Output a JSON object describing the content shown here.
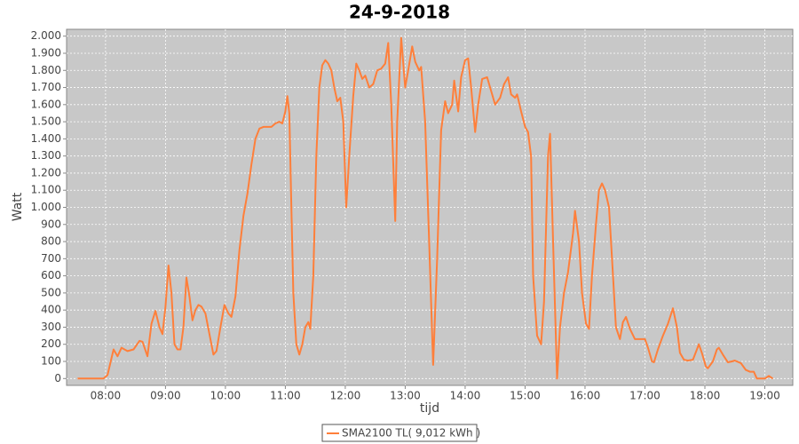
{
  "chart_data": {
    "type": "line",
    "title": "24-9-2018",
    "y_label": "Watt",
    "x_label": "tijd",
    "grid": true,
    "legend": "bottom",
    "xlim": [
      "07:21",
      "19:28"
    ],
    "xticks": [
      "08:00",
      "09:00",
      "10:00",
      "11:00",
      "12:00",
      "13:00",
      "14:00",
      "15:00",
      "16:00",
      "17:00",
      "18:00",
      "19:00"
    ],
    "ylim": [
      -40,
      2040
    ],
    "yticks": [
      0,
      100,
      200,
      300,
      400,
      500,
      600,
      700,
      800,
      900,
      {
        "value": 1000,
        "label": "1.000"
      },
      {
        "value": 1100,
        "label": "1.100"
      },
      {
        "value": 1200,
        "label": "1.200"
      },
      {
        "value": 1300,
        "label": "1.300"
      },
      {
        "value": 1400,
        "label": "1.400"
      },
      {
        "value": 1500,
        "label": "1.500"
      },
      {
        "value": 1600,
        "label": "1.600"
      },
      {
        "value": 1700,
        "label": "1.700"
      },
      {
        "value": 1800,
        "label": "1.800"
      },
      {
        "value": 1900,
        "label": "1.900"
      },
      {
        "value": 2000,
        "label": "2.000"
      }
    ],
    "x": [
      "07:32",
      "07:50",
      "07:58",
      "08:02",
      "08:08",
      "08:12",
      "08:16",
      "08:22",
      "08:28",
      "08:34",
      "08:37",
      "08:42",
      "08:46",
      "08:50",
      "08:54",
      "08:57",
      "09:00",
      "09:03",
      "09:06",
      "09:09",
      "09:12",
      "09:15",
      "09:18",
      "09:21",
      "09:24",
      "09:27",
      "09:30",
      "09:33",
      "09:36",
      "09:40",
      "09:44",
      "09:48",
      "09:51",
      "09:55",
      "09:59",
      "10:03",
      "10:06",
      "10:10",
      "10:14",
      "10:18",
      "10:22",
      "10:26",
      "10:30",
      "10:34",
      "10:38",
      "10:42",
      "10:46",
      "10:50",
      "10:54",
      "10:57",
      "11:00",
      "11:02",
      "11:04",
      "11:06",
      "11:08",
      "11:11",
      "11:14",
      "11:17",
      "11:20",
      "11:23",
      "11:25",
      "11:28",
      "11:31",
      "11:34",
      "11:37",
      "11:40",
      "11:43",
      "11:46",
      "11:49",
      "11:52",
      "11:55",
      "11:58",
      "12:01",
      "12:04",
      "12:08",
      "12:11",
      "12:14",
      "12:17",
      "12:20",
      "12:24",
      "12:28",
      "12:32",
      "12:36",
      "12:40",
      "12:43",
      "12:46",
      "12:50",
      "12:52",
      "12:56",
      "13:00",
      "13:03",
      "13:07",
      "13:10",
      "13:14",
      "13:16",
      "13:20",
      "13:24",
      "13:28",
      "13:32",
      "13:36",
      "13:40",
      "13:43",
      "13:47",
      "13:49",
      "13:53",
      "13:56",
      "14:00",
      "14:03",
      "14:06",
      "14:10",
      "14:13",
      "14:17",
      "14:22",
      "14:26",
      "14:30",
      "14:35",
      "14:39",
      "14:43",
      "14:46",
      "14:50",
      "14:52",
      "14:56",
      "15:00",
      "15:03",
      "15:06",
      "15:08",
      "15:12",
      "15:16",
      "15:19",
      "15:23",
      "15:25",
      "15:28",
      "15:32",
      "15:35",
      "15:39",
      "15:43",
      "15:48",
      "15:50",
      "15:54",
      "15:57",
      "16:01",
      "16:04",
      "16:07",
      "16:11",
      "16:14",
      "16:17",
      "16:20",
      "16:24",
      "16:28",
      "16:31",
      "16:35",
      "16:38",
      "16:41",
      "16:45",
      "16:50",
      "16:54",
      "17:00",
      "17:03",
      "17:07",
      "17:09",
      "17:13",
      "17:18",
      "17:23",
      "17:28",
      "17:32",
      "17:35",
      "17:39",
      "17:43",
      "17:48",
      "17:52",
      "17:54",
      "17:57",
      "18:01",
      "18:03",
      "18:08",
      "18:12",
      "18:14",
      "18:18",
      "18:23",
      "18:27",
      "18:30",
      "18:36",
      "18:41",
      "18:45",
      "18:49",
      "18:52",
      "19:00",
      "19:04",
      "19:08"
    ],
    "series": [
      {
        "name": "SMA2100 TL( 9,012 kWh )",
        "color": "#ff7f3a",
        "values": [
          0,
          0,
          0,
          20,
          170,
          130,
          180,
          160,
          170,
          220,
          215,
          130,
          320,
          395,
          300,
          260,
          420,
          660,
          500,
          200,
          170,
          170,
          300,
          590,
          480,
          340,
          400,
          430,
          420,
          380,
          260,
          140,
          160,
          300,
          430,
          380,
          360,
          480,
          750,
          950,
          1080,
          1250,
          1400,
          1460,
          1470,
          1470,
          1470,
          1490,
          1500,
          1490,
          1560,
          1650,
          1550,
          1000,
          500,
          200,
          140,
          200,
          300,
          330,
          290,
          600,
          1300,
          1700,
          1830,
          1860,
          1840,
          1800,
          1700,
          1620,
          1640,
          1500,
          1000,
          1300,
          1650,
          1840,
          1800,
          1750,
          1770,
          1700,
          1720,
          1800,
          1810,
          1840,
          1960,
          1600,
          920,
          1500,
          1990,
          1700,
          1800,
          1940,
          1850,
          1800,
          1820,
          1500,
          800,
          80,
          700,
          1450,
          1620,
          1550,
          1600,
          1740,
          1560,
          1760,
          1860,
          1870,
          1700,
          1440,
          1600,
          1750,
          1760,
          1680,
          1600,
          1640,
          1720,
          1760,
          1660,
          1640,
          1660,
          1560,
          1470,
          1440,
          1300,
          600,
          250,
          200,
          450,
          1300,
          1430,
          800,
          0,
          300,
          500,
          620,
          850,
          980,
          800,
          500,
          320,
          290,
          600,
          900,
          1100,
          1140,
          1100,
          1000,
          600,
          300,
          230,
          330,
          360,
          290,
          230,
          230,
          230,
          180,
          100,
          95,
          170,
          250,
          320,
          410,
          300,
          150,
          110,
          105,
          110,
          170,
          200,
          150,
          70,
          60,
          100,
          170,
          180,
          140,
          95,
          100,
          105,
          90,
          50,
          40,
          40,
          0,
          0,
          15,
          0
        ]
      }
    ]
  }
}
